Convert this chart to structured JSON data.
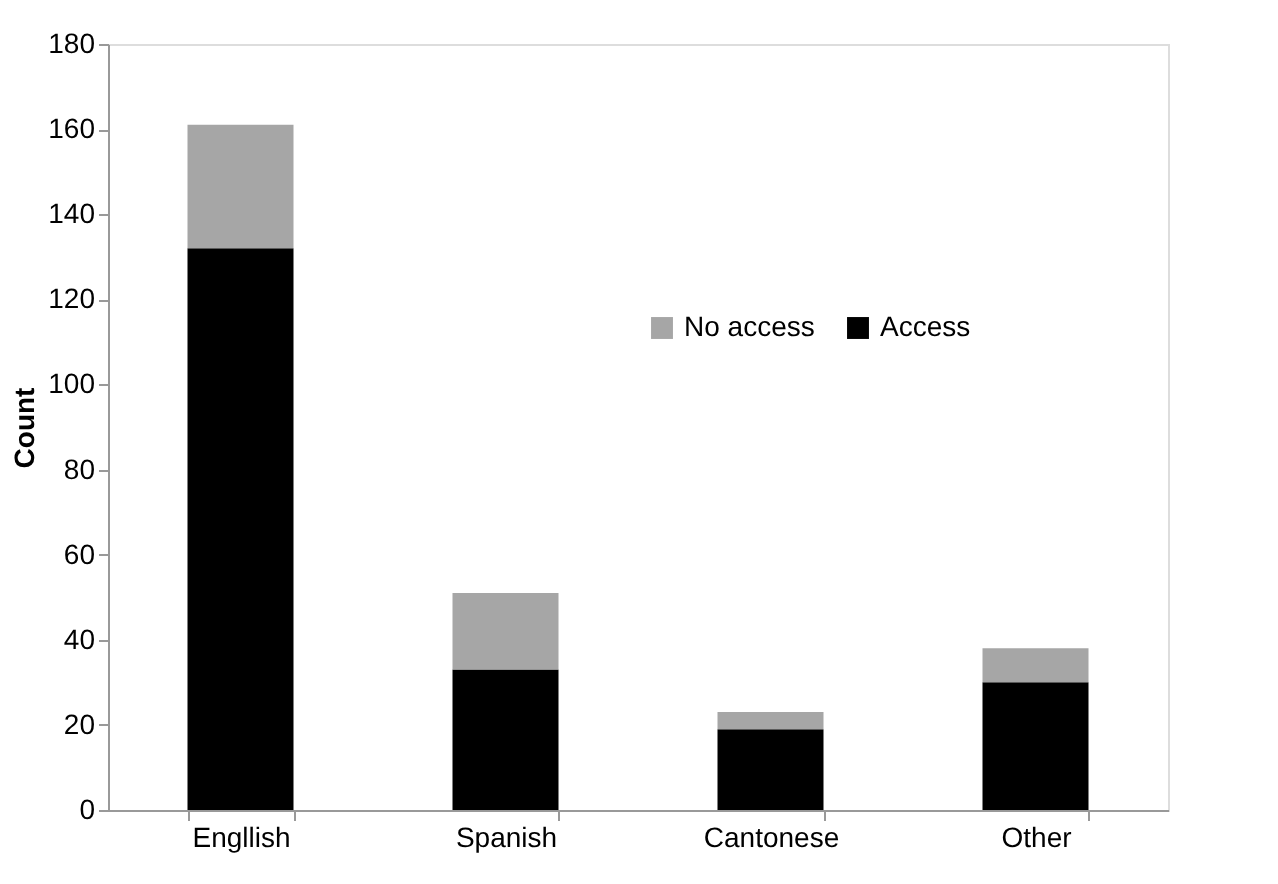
{
  "chart_data": {
    "type": "bar",
    "ylabel": "Count",
    "categories": [
      "Engllish",
      "Spanish",
      "Cantonese",
      "Other"
    ],
    "stacked": true,
    "ylim": [
      0,
      180
    ],
    "yticks": [
      0,
      20,
      40,
      60,
      80,
      100,
      120,
      140,
      160,
      180
    ],
    "grid": false,
    "legend": "right",
    "series": [
      {
        "name": "Access",
        "color": "#000000",
        "values": [
          132,
          33,
          19,
          30
        ]
      },
      {
        "name": "No access",
        "color": "#a6a6a6",
        "values": [
          29,
          18,
          4,
          8
        ]
      }
    ]
  }
}
